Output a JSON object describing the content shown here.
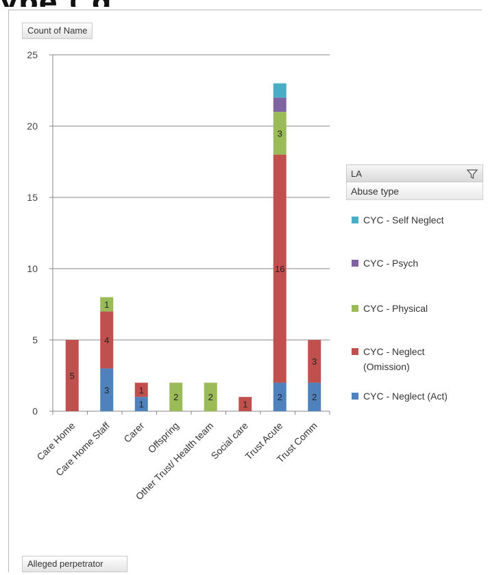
{
  "chart_data": {
    "type": "bar",
    "stacked": true,
    "value_field_label": "Count of Name",
    "axis_field_label": "Alleged perpetrator",
    "legend_filter_label": "LA",
    "legend_title": "Abuse type",
    "legend_position": "right",
    "grid": true,
    "ylim": [
      0,
      25
    ],
    "yticks": [
      0,
      5,
      10,
      15,
      20,
      25
    ],
    "categories": [
      "Care Home",
      "Care Home Staff",
      "Carer",
      "Offspring",
      "Other Trust/ Health team",
      "Social care",
      "Trust Acute",
      "Trust Comm"
    ],
    "series": [
      {
        "name": "CYC - Neglect (Act)",
        "color": "#4f81bd",
        "values": [
          0,
          3,
          1,
          0,
          0,
          0,
          2,
          2
        ]
      },
      {
        "name": "CYC - Neglect (Omission)",
        "color": "#c0504d",
        "values": [
          5,
          4,
          1,
          0,
          0,
          1,
          16,
          3
        ]
      },
      {
        "name": "CYC - Physical",
        "color": "#9bbb59",
        "values": [
          0,
          1,
          0,
          2,
          2,
          0,
          3,
          0
        ]
      },
      {
        "name": "CYC - Psych",
        "color": "#8064a2",
        "values": [
          0,
          0,
          0,
          0,
          0,
          0,
          1,
          0
        ]
      },
      {
        "name": "CYC - Self Neglect",
        "color": "#4bacc6",
        "values": [
          0,
          0,
          0,
          0,
          0,
          0,
          1,
          0
        ]
      }
    ],
    "data_labels_shown": {
      "CYC - Neglect (Act)": [
        false,
        true,
        true,
        false,
        false,
        false,
        true,
        true
      ],
      "CYC - Neglect (Omission)": [
        true,
        true,
        true,
        false,
        false,
        true,
        true,
        true
      ],
      "CYC - Physical": [
        false,
        true,
        false,
        true,
        true,
        false,
        true,
        false
      ],
      "CYC - Psych": [
        false,
        false,
        false,
        false,
        false,
        false,
        false,
        false
      ],
      "CYC - Self Neglect": [
        false,
        false,
        false,
        false,
        false,
        false,
        false,
        false
      ]
    }
  },
  "legend_order": [
    "CYC - Self Neglect",
    "CYC - Psych",
    "CYC - Physical",
    "CYC - Neglect (Omission)",
    "CYC - Neglect (Act)"
  ],
  "legend_display_labels": [
    "CYC - Self Neglect",
    "CYC - Psych",
    "CYC - Physical",
    "CYC - Neglect\n(Omission)",
    "CYC - Neglect (Act)"
  ],
  "header_fragment": "ype         (                                    g"
}
